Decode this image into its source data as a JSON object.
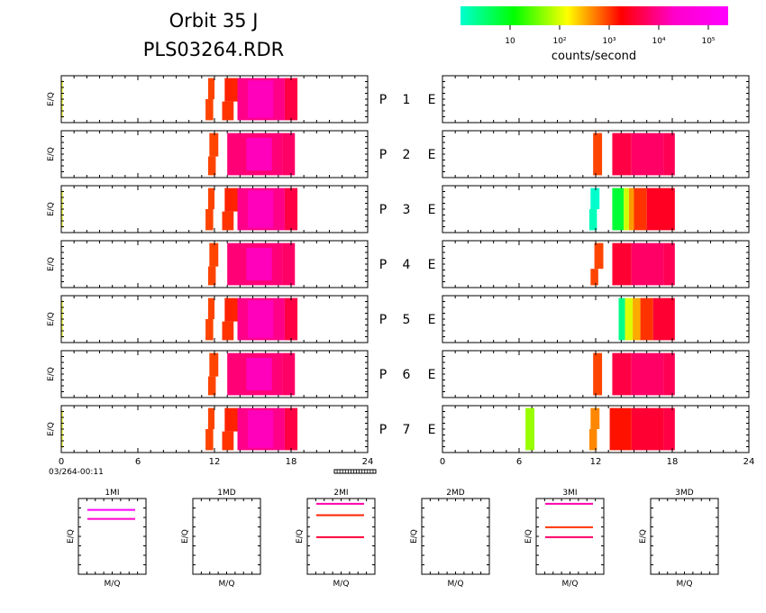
{
  "title": "Orbit 35 J",
  "filename": "PLS03264.RDR",
  "colorbar": {
    "label": "counts/second",
    "ticks": [
      "10",
      "10²",
      "10³",
      "10⁴",
      "10⁵"
    ],
    "tick_log_values": [
      1,
      2,
      3,
      4,
      5
    ],
    "log_range": [
      0.0,
      5.4
    ],
    "stops": [
      "#00ffd0",
      "#00ff00",
      "#ffff00",
      "#ff0000",
      "#ff00cc",
      "#ff00ff"
    ]
  },
  "start_time": "03/264-00:11",
  "chart_data": {
    "type": "heatmap",
    "x_ticks": [
      "0",
      "6",
      "12",
      "18",
      "24"
    ],
    "xlim": [
      0,
      24
    ],
    "ylabel": "E/Q",
    "rows": [
      {
        "label": "P",
        "num": "1",
        "channel": "E",
        "left": [
          {
            "x0": 0.0,
            "x1": 0.12,
            "y0": 0.1,
            "y1": 0.9,
            "color": "#ffff33"
          },
          {
            "x0": 11.5,
            "x1": 12.0,
            "y0": 0.5,
            "y1": 0.95,
            "color": "#ff4400"
          },
          {
            "x0": 11.3,
            "x1": 11.9,
            "y0": 0.05,
            "y1": 0.5,
            "color": "#ff4400"
          },
          {
            "x0": 12.8,
            "x1": 13.8,
            "y0": 0.45,
            "y1": 0.95,
            "color": "#ff2200"
          },
          {
            "x0": 12.6,
            "x1": 13.5,
            "y0": 0.05,
            "y1": 0.45,
            "color": "#ff3300"
          },
          {
            "x0": 13.8,
            "x1": 17.5,
            "y0": 0.05,
            "y1": 0.95,
            "color": "#ff0088"
          },
          {
            "x0": 14.6,
            "x1": 16.6,
            "y0": 0.1,
            "y1": 0.9,
            "color": "#ff00bb"
          },
          {
            "x0": 17.5,
            "x1": 18.5,
            "y0": 0.05,
            "y1": 0.95,
            "color": "#ff0044"
          }
        ],
        "right": []
      },
      {
        "label": "P",
        "num": "2",
        "channel": "E",
        "left": [
          {
            "x0": 11.6,
            "x1": 12.3,
            "y0": 0.45,
            "y1": 0.95,
            "color": "#ff4400"
          },
          {
            "x0": 11.5,
            "x1": 12.1,
            "y0": 0.05,
            "y1": 0.45,
            "color": "#ff4400"
          },
          {
            "x0": 13.0,
            "x1": 17.3,
            "y0": 0.05,
            "y1": 0.95,
            "color": "#ff0077"
          },
          {
            "x0": 14.5,
            "x1": 16.5,
            "y0": 0.15,
            "y1": 0.85,
            "color": "#ff00bb"
          },
          {
            "x0": 17.3,
            "x1": 18.3,
            "y0": 0.05,
            "y1": 0.95,
            "color": "#ff0066"
          }
        ],
        "right": [
          {
            "x0": 11.8,
            "x1": 12.5,
            "y0": 0.05,
            "y1": 0.95,
            "color": "#ff4400"
          },
          {
            "x0": 13.3,
            "x1": 14.8,
            "y0": 0.05,
            "y1": 0.95,
            "color": "#ff0044"
          },
          {
            "x0": 14.8,
            "x1": 17.3,
            "y0": 0.05,
            "y1": 0.95,
            "color": "#ff0066"
          },
          {
            "x0": 17.3,
            "x1": 18.2,
            "y0": 0.05,
            "y1": 0.95,
            "color": "#ff0055"
          }
        ]
      },
      {
        "label": "P",
        "num": "3",
        "channel": "E",
        "left": [
          {
            "x0": 0.0,
            "x1": 0.12,
            "y0": 0.1,
            "y1": 0.9,
            "color": "#ffff33"
          },
          {
            "x0": 11.5,
            "x1": 12.0,
            "y0": 0.5,
            "y1": 0.95,
            "color": "#ff4400"
          },
          {
            "x0": 11.3,
            "x1": 11.9,
            "y0": 0.05,
            "y1": 0.5,
            "color": "#ff4400"
          },
          {
            "x0": 12.8,
            "x1": 13.8,
            "y0": 0.45,
            "y1": 0.95,
            "color": "#ff2200"
          },
          {
            "x0": 12.6,
            "x1": 13.5,
            "y0": 0.05,
            "y1": 0.45,
            "color": "#ff3300"
          },
          {
            "x0": 13.8,
            "x1": 17.5,
            "y0": 0.05,
            "y1": 0.95,
            "color": "#ff0088"
          },
          {
            "x0": 14.6,
            "x1": 16.6,
            "y0": 0.1,
            "y1": 0.9,
            "color": "#ff00bb"
          },
          {
            "x0": 17.5,
            "x1": 18.5,
            "y0": 0.05,
            "y1": 0.95,
            "color": "#ff0044"
          }
        ],
        "right": [
          {
            "x0": 11.6,
            "x1": 12.3,
            "y0": 0.5,
            "y1": 0.95,
            "color": "#00ffcc"
          },
          {
            "x0": 11.5,
            "x1": 12.1,
            "y0": 0.05,
            "y1": 0.5,
            "color": "#00ffbb"
          },
          {
            "x0": 13.3,
            "x1": 14.2,
            "y0": 0.05,
            "y1": 0.95,
            "color": "#00ff33"
          },
          {
            "x0": 14.2,
            "x1": 14.6,
            "y0": 0.05,
            "y1": 0.95,
            "color": "#ccff00"
          },
          {
            "x0": 14.6,
            "x1": 15.0,
            "y0": 0.05,
            "y1": 0.95,
            "color": "#ff9900"
          },
          {
            "x0": 15.0,
            "x1": 16.0,
            "y0": 0.05,
            "y1": 0.95,
            "color": "#ff3300"
          },
          {
            "x0": 16.0,
            "x1": 18.2,
            "y0": 0.05,
            "y1": 0.95,
            "color": "#ff0022"
          }
        ]
      },
      {
        "label": "P",
        "num": "4",
        "channel": "E",
        "left": [
          {
            "x0": 11.6,
            "x1": 12.3,
            "y0": 0.45,
            "y1": 0.95,
            "color": "#ff4400"
          },
          {
            "x0": 11.5,
            "x1": 12.1,
            "y0": 0.05,
            "y1": 0.45,
            "color": "#ff4400"
          },
          {
            "x0": 13.0,
            "x1": 17.3,
            "y0": 0.05,
            "y1": 0.95,
            "color": "#ff0077"
          },
          {
            "x0": 14.5,
            "x1": 16.5,
            "y0": 0.15,
            "y1": 0.85,
            "color": "#ff00bb"
          },
          {
            "x0": 17.3,
            "x1": 18.3,
            "y0": 0.05,
            "y1": 0.95,
            "color": "#ff0066"
          }
        ],
        "right": [
          {
            "x0": 11.9,
            "x1": 12.6,
            "y0": 0.4,
            "y1": 0.95,
            "color": "#ff4400"
          },
          {
            "x0": 11.6,
            "x1": 12.2,
            "y0": 0.05,
            "y1": 0.4,
            "color": "#ff4400"
          },
          {
            "x0": 13.3,
            "x1": 14.8,
            "y0": 0.05,
            "y1": 0.95,
            "color": "#ff0033"
          },
          {
            "x0": 14.8,
            "x1": 17.3,
            "y0": 0.05,
            "y1": 0.95,
            "color": "#ff0066"
          },
          {
            "x0": 17.3,
            "x1": 18.2,
            "y0": 0.05,
            "y1": 0.95,
            "color": "#ff0055"
          }
        ]
      },
      {
        "label": "P",
        "num": "5",
        "channel": "E",
        "left": [
          {
            "x0": 0.0,
            "x1": 0.12,
            "y0": 0.1,
            "y1": 0.9,
            "color": "#ffff33"
          },
          {
            "x0": 11.5,
            "x1": 12.0,
            "y0": 0.5,
            "y1": 0.95,
            "color": "#ff4400"
          },
          {
            "x0": 11.3,
            "x1": 11.9,
            "y0": 0.05,
            "y1": 0.5,
            "color": "#ff4400"
          },
          {
            "x0": 12.8,
            "x1": 13.8,
            "y0": 0.45,
            "y1": 0.95,
            "color": "#ff2200"
          },
          {
            "x0": 12.6,
            "x1": 13.5,
            "y0": 0.05,
            "y1": 0.45,
            "color": "#ff3300"
          },
          {
            "x0": 13.8,
            "x1": 17.5,
            "y0": 0.05,
            "y1": 0.95,
            "color": "#ff0088"
          },
          {
            "x0": 14.6,
            "x1": 16.6,
            "y0": 0.1,
            "y1": 0.9,
            "color": "#ff00bb"
          },
          {
            "x0": 17.5,
            "x1": 18.5,
            "y0": 0.05,
            "y1": 0.95,
            "color": "#ff0044"
          }
        ],
        "right": [
          {
            "x0": 13.8,
            "x1": 14.3,
            "y0": 0.05,
            "y1": 0.95,
            "color": "#00ff88"
          },
          {
            "x0": 14.3,
            "x1": 14.9,
            "y0": 0.05,
            "y1": 0.95,
            "color": "#ddff00"
          },
          {
            "x0": 14.9,
            "x1": 15.5,
            "y0": 0.05,
            "y1": 0.95,
            "color": "#ffaa00"
          },
          {
            "x0": 15.5,
            "x1": 16.5,
            "y0": 0.05,
            "y1": 0.95,
            "color": "#ff3300"
          },
          {
            "x0": 16.5,
            "x1": 18.2,
            "y0": 0.05,
            "y1": 0.95,
            "color": "#ff0033"
          }
        ]
      },
      {
        "label": "P",
        "num": "6",
        "channel": "E",
        "left": [
          {
            "x0": 11.6,
            "x1": 12.3,
            "y0": 0.45,
            "y1": 0.95,
            "color": "#ff4400"
          },
          {
            "x0": 11.5,
            "x1": 12.1,
            "y0": 0.05,
            "y1": 0.45,
            "color": "#ff4400"
          },
          {
            "x0": 13.0,
            "x1": 17.3,
            "y0": 0.05,
            "y1": 0.95,
            "color": "#ff0077"
          },
          {
            "x0": 14.5,
            "x1": 16.5,
            "y0": 0.15,
            "y1": 0.85,
            "color": "#ff00bb"
          },
          {
            "x0": 17.3,
            "x1": 18.3,
            "y0": 0.05,
            "y1": 0.95,
            "color": "#ff0066"
          }
        ],
        "right": [
          {
            "x0": 11.8,
            "x1": 12.5,
            "y0": 0.05,
            "y1": 0.95,
            "color": "#ff4400"
          },
          {
            "x0": 13.3,
            "x1": 14.8,
            "y0": 0.05,
            "y1": 0.95,
            "color": "#ff0044"
          },
          {
            "x0": 14.8,
            "x1": 17.3,
            "y0": 0.05,
            "y1": 0.95,
            "color": "#ff0066"
          },
          {
            "x0": 17.3,
            "x1": 18.2,
            "y0": 0.05,
            "y1": 0.95,
            "color": "#ff0055"
          }
        ]
      },
      {
        "label": "P",
        "num": "7",
        "channel": "E",
        "left": [
          {
            "x0": 0.0,
            "x1": 0.12,
            "y0": 0.1,
            "y1": 0.9,
            "color": "#ffff33"
          },
          {
            "x0": 11.5,
            "x1": 12.0,
            "y0": 0.5,
            "y1": 0.95,
            "color": "#ff4400"
          },
          {
            "x0": 11.3,
            "x1": 11.9,
            "y0": 0.05,
            "y1": 0.5,
            "color": "#ff4400"
          },
          {
            "x0": 12.8,
            "x1": 13.8,
            "y0": 0.45,
            "y1": 0.95,
            "color": "#ff2200"
          },
          {
            "x0": 12.6,
            "x1": 13.5,
            "y0": 0.05,
            "y1": 0.45,
            "color": "#ff3300"
          },
          {
            "x0": 13.8,
            "x1": 17.5,
            "y0": 0.05,
            "y1": 0.95,
            "color": "#ff0088"
          },
          {
            "x0": 14.6,
            "x1": 16.6,
            "y0": 0.1,
            "y1": 0.9,
            "color": "#ff00bb"
          },
          {
            "x0": 17.5,
            "x1": 18.5,
            "y0": 0.05,
            "y1": 0.95,
            "color": "#ff0044"
          }
        ],
        "right": [
          {
            "x0": 6.5,
            "x1": 7.2,
            "y0": 0.05,
            "y1": 0.95,
            "color": "#99ff00"
          },
          {
            "x0": 11.6,
            "x1": 12.3,
            "y0": 0.5,
            "y1": 0.95,
            "color": "#ff8800"
          },
          {
            "x0": 11.5,
            "x1": 12.1,
            "y0": 0.05,
            "y1": 0.5,
            "color": "#ff8800"
          },
          {
            "x0": 13.1,
            "x1": 14.8,
            "y0": 0.05,
            "y1": 0.95,
            "color": "#ff1100"
          },
          {
            "x0": 14.8,
            "x1": 17.3,
            "y0": 0.05,
            "y1": 0.95,
            "color": "#ff0033"
          },
          {
            "x0": 17.3,
            "x1": 18.2,
            "y0": 0.05,
            "y1": 0.95,
            "color": "#ff0044"
          }
        ]
      }
    ],
    "mass_panels": [
      {
        "title": "1MI",
        "xlabel": "M/Q",
        "ylabel": "E/Q",
        "lines": [
          {
            "y": 0.85,
            "color": "#ff00ff"
          },
          {
            "y": 0.73,
            "color": "#ff00cc"
          }
        ]
      },
      {
        "title": "1MD",
        "xlabel": "M/Q",
        "ylabel": "E/Q",
        "lines": []
      },
      {
        "title": "2MI",
        "xlabel": "M/Q",
        "ylabel": "E/Q",
        "lines": [
          {
            "y": 0.93,
            "color": "#ff00aa"
          },
          {
            "y": 0.78,
            "color": "#ff2200"
          },
          {
            "y": 0.49,
            "color": "#ff0033"
          }
        ]
      },
      {
        "title": "2MD",
        "xlabel": "M/Q",
        "ylabel": "E/Q",
        "lines": []
      },
      {
        "title": "3MI",
        "xlabel": "M/Q",
        "ylabel": "E/Q",
        "lines": [
          {
            "y": 0.93,
            "color": "#ff00aa"
          },
          {
            "y": 0.62,
            "color": "#ff3300"
          },
          {
            "y": 0.49,
            "color": "#ff0066"
          }
        ]
      },
      {
        "title": "3MD",
        "xlabel": "M/Q",
        "ylabel": "E/Q",
        "lines": []
      }
    ]
  }
}
